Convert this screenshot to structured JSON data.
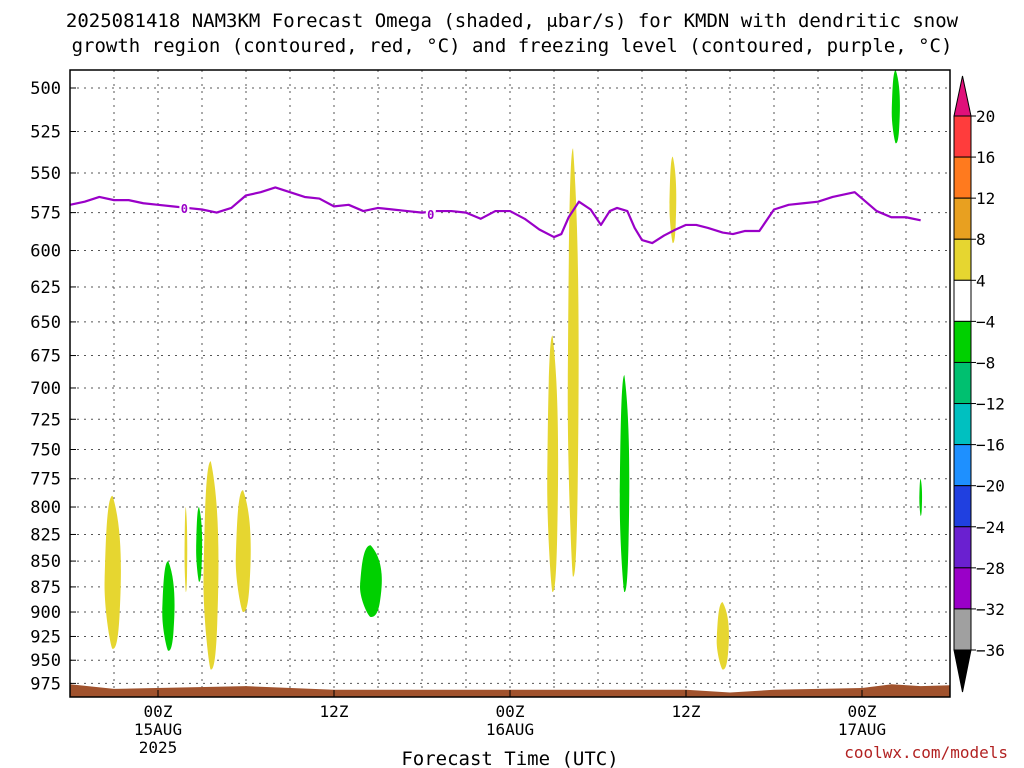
{
  "chart_data": {
    "type": "heatmap",
    "title_line1": "2025081418 NAM3KM Forecast Omega (shaded, μbar/s) for KMDN with dendritic snow",
    "title_line2": "growth region (contoured, red, °C) and freezing level (contoured, purple, °C)",
    "xlabel": "Forecast Time (UTC)",
    "credit": "coolwx.com/models",
    "y_levels": [
      "500",
      "525",
      "550",
      "575",
      "600",
      "625",
      "650",
      "675",
      "700",
      "725",
      "750",
      "775",
      "800",
      "825",
      "850",
      "875",
      "900",
      "925",
      "950",
      "975"
    ],
    "y_axis": "pressure (hPa), log scale, top 500 bottom ~990",
    "x_ticks": [
      {
        "hours": 6,
        "lines": [
          "00Z",
          "15AUG",
          "2025"
        ]
      },
      {
        "hours": 18,
        "lines": [
          "12Z"
        ]
      },
      {
        "hours": 30,
        "lines": [
          "00Z",
          "16AUG"
        ]
      },
      {
        "hours": 42,
        "lines": [
          "12Z"
        ]
      },
      {
        "hours": 54,
        "lines": [
          "00Z",
          "17AUG"
        ]
      }
    ],
    "x_range_hours": [
      0,
      60
    ],
    "grid": true,
    "colorbar": {
      "ticks": [
        "20",
        "16",
        "12",
        "8",
        "4",
        "−4",
        "−8",
        "−12",
        "−16",
        "−20",
        "−24",
        "−28",
        "−32",
        "−36"
      ],
      "colors": [
        "#ff3c3c",
        "#ff7a1e",
        "#e8a020",
        "#e6d630",
        "#ffffff",
        "#00d000",
        "#00c070",
        "#00c0c0",
        "#1e90ff",
        "#2040e0",
        "#6a20d0",
        "#9a00c8",
        "#a0a0a0"
      ],
      "top_color": "#e0107a",
      "bottom_color": "#000000"
    },
    "freezing_level": {
      "label": "0",
      "color": "#9a00c8",
      "points": [
        [
          0,
          570
        ],
        [
          1,
          568
        ],
        [
          2,
          565
        ],
        [
          3,
          567
        ],
        [
          4,
          567
        ],
        [
          5,
          569
        ],
        [
          6,
          570
        ],
        [
          7,
          571
        ],
        [
          8,
          572
        ],
        [
          9,
          573
        ],
        [
          10,
          575
        ],
        [
          11,
          572
        ],
        [
          12,
          564
        ],
        [
          13,
          562
        ],
        [
          14,
          559
        ],
        [
          15,
          562
        ],
        [
          16,
          565
        ],
        [
          17,
          566
        ],
        [
          18,
          571
        ],
        [
          19,
          570
        ],
        [
          20,
          574
        ],
        [
          21,
          572
        ],
        [
          22,
          573
        ],
        [
          23,
          574
        ],
        [
          24,
          575
        ],
        [
          25,
          574
        ],
        [
          26,
          574
        ],
        [
          27,
          575
        ],
        [
          28,
          579
        ],
        [
          29,
          574
        ],
        [
          30,
          574
        ],
        [
          31,
          579
        ],
        [
          32,
          586
        ],
        [
          33,
          591
        ],
        [
          33.5,
          589
        ],
        [
          34,
          578
        ],
        [
          34.7,
          568
        ],
        [
          35.5,
          573
        ],
        [
          36.2,
          583
        ],
        [
          36.8,
          574
        ],
        [
          37.3,
          572
        ],
        [
          38,
          574
        ],
        [
          38.5,
          585
        ],
        [
          39,
          593
        ],
        [
          39.7,
          595
        ],
        [
          40.5,
          590
        ],
        [
          41.3,
          586
        ],
        [
          42,
          583
        ],
        [
          42.7,
          583
        ],
        [
          43.5,
          585
        ],
        [
          44.5,
          588
        ],
        [
          45.2,
          589
        ],
        [
          46,
          587
        ],
        [
          47,
          587
        ],
        [
          48,
          573
        ],
        [
          49,
          570
        ],
        [
          50,
          569
        ],
        [
          51,
          568
        ],
        [
          52,
          565
        ],
        [
          53.5,
          562
        ],
        [
          55,
          574
        ],
        [
          56,
          578
        ],
        [
          57,
          578
        ],
        [
          58,
          580
        ]
      ],
      "label_positions": [
        [
          7.8,
          572
        ],
        [
          24.6,
          576
        ]
      ]
    },
    "omega_blobs": [
      {
        "value": 6,
        "color": "#e6d630",
        "x": 2.9,
        "y1": 790,
        "y2": 938,
        "half_width": 0.6
      },
      {
        "value": -6,
        "color": "#00d000",
        "x": 6.7,
        "y1": 850,
        "y2": 940,
        "half_width": 0.45
      },
      {
        "value": 6,
        "color": "#e6d630",
        "x": 7.9,
        "y1": 800,
        "y2": 880,
        "half_width": 0.1
      },
      {
        "value": -6,
        "color": "#00d000",
        "x": 8.8,
        "y1": 800,
        "y2": 870,
        "half_width": 0.22
      },
      {
        "value": 6,
        "color": "#e6d630",
        "x": 9.6,
        "y1": 760,
        "y2": 960,
        "half_width": 0.55
      },
      {
        "value": 6,
        "color": "#e6d630",
        "x": 11.8,
        "y1": 785,
        "y2": 900,
        "half_width": 0.55
      },
      {
        "value": -6,
        "color": "#00d000",
        "x": 20.5,
        "y1": 835,
        "y2": 905,
        "half_width": 0.8
      },
      {
        "value": 6,
        "color": "#e6d630",
        "x": 32.9,
        "y1": 660,
        "y2": 880,
        "half_width": 0.4
      },
      {
        "value": 6,
        "color": "#e6d630",
        "x": 34.3,
        "y1": 535,
        "y2": 865,
        "half_width": 0.4
      },
      {
        "value": -6,
        "color": "#00d000",
        "x": 37.8,
        "y1": 690,
        "y2": 880,
        "half_width": 0.35
      },
      {
        "value": 6,
        "color": "#e6d630",
        "x": 41.1,
        "y1": 540,
        "y2": 595,
        "half_width": 0.25
      },
      {
        "value": 6,
        "color": "#e6d630",
        "x": 44.5,
        "y1": 890,
        "y2": 960,
        "half_width": 0.45
      },
      {
        "value": -6,
        "color": "#00d000",
        "x": 56.3,
        "y1": 490,
        "y2": 532,
        "half_width": 0.3
      },
      {
        "value": -6,
        "color": "#00d000",
        "x": 58.0,
        "y1": 775,
        "y2": 808,
        "half_width": 0.1
      }
    ],
    "terrain": {
      "color": "#a0522d",
      "surface_pressure": 982
    }
  }
}
